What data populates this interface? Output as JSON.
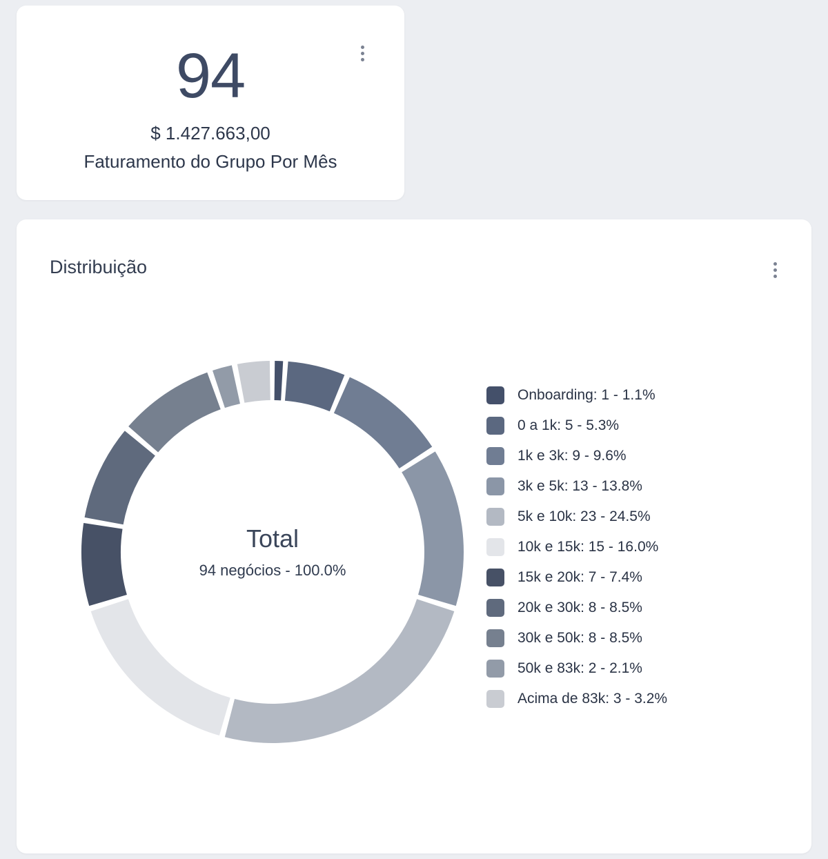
{
  "kpi_card": {
    "value": "94",
    "revenue": "$ 1.427.663,00",
    "label": "Faturamento do Grupo Por Mês"
  },
  "distribution_card": {
    "title": "Distribuição",
    "center_title": "Total",
    "center_subtitle": "94 negócios - 100.0%"
  },
  "chart_data": {
    "type": "pie",
    "donut": true,
    "title": "Distribuição",
    "legend_position": "right",
    "total": 94,
    "total_label": "94 negócios - 100.0%",
    "categories": [
      "Onboarding",
      "0 a 1k",
      "1k e 3k",
      "3k e 5k",
      "5k e 10k",
      "10k e 15k",
      "15k e 20k",
      "20k e 30k",
      "30k e 50k",
      "50k e 83k",
      "Acima de 83k"
    ],
    "values": [
      1,
      5,
      9,
      13,
      23,
      15,
      7,
      8,
      8,
      2,
      3
    ],
    "percents": [
      "1.1%",
      "5.3%",
      "9.6%",
      "13.8%",
      "24.5%",
      "16.0%",
      "7.4%",
      "8.5%",
      "8.5%",
      "2.1%",
      "3.2%"
    ],
    "legend_labels": [
      "Onboarding: 1 - 1.1%",
      "0 a 1k: 5 - 5.3%",
      "1k e 3k: 9 - 9.6%",
      "3k e 5k: 13 - 13.8%",
      "5k e 10k: 23 - 24.5%",
      "10k e 15k: 15 - 16.0%",
      "15k e 20k: 7 - 7.4%",
      "20k e 30k: 8 - 8.5%",
      "30k e 50k: 8 - 8.5%",
      "50k e 83k: 2 - 2.1%",
      "Acima de 83k: 3 - 3.2%"
    ],
    "colors": [
      "#44506a",
      "#5b6880",
      "#707d93",
      "#8b96a7",
      "#b3b9c3",
      "#e3e5e9",
      "#475166",
      "#5f6a7d",
      "#76808f",
      "#929ba8",
      "#c9ccd2"
    ]
  }
}
